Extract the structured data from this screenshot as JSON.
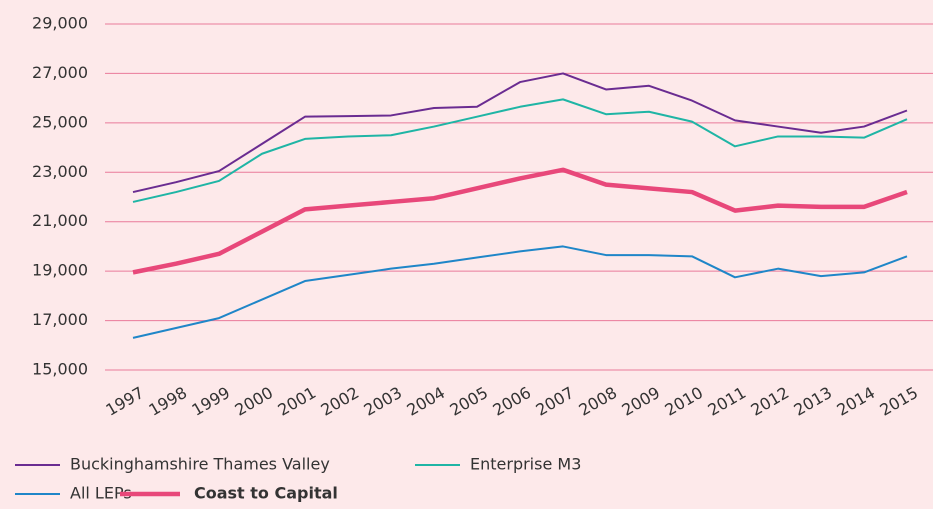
{
  "chart_data": {
    "type": "line",
    "categories": [
      "1997",
      "1998",
      "1999",
      "2000",
      "2001",
      "2002",
      "2003",
      "2004",
      "2005",
      "2006",
      "2007",
      "2008",
      "2009",
      "2010",
      "2011",
      "2012",
      "2013",
      "2014",
      "2015"
    ],
    "series": [
      {
        "name": "Buckinghamshire Thames Valley",
        "color": "#6a2c91",
        "values": [
          22200,
          22600,
          23050,
          24150,
          25250,
          25270,
          25300,
          25600,
          25650,
          26650,
          27000,
          26350,
          26500,
          25900,
          25100,
          24850,
          24600,
          24850,
          25500
        ]
      },
      {
        "name": "Enterprise M3",
        "color": "#1fb5a5",
        "values": [
          21800,
          22200,
          22650,
          23750,
          24350,
          24450,
          24500,
          24850,
          25250,
          25650,
          25950,
          25350,
          25450,
          25050,
          24050,
          24450,
          24450,
          24400,
          25150
        ]
      },
      {
        "name": "All LEPs",
        "color": "#1f86c8",
        "values": [
          16300,
          16700,
          17100,
          17850,
          18600,
          18850,
          19100,
          19300,
          19550,
          19800,
          20000,
          19650,
          19650,
          19600,
          18750,
          19100,
          18800,
          18950,
          19600
        ]
      },
      {
        "name": "Coast to Capital",
        "color": "#e8487a",
        "highlight": true,
        "values": [
          18950,
          19300,
          19700,
          20600,
          21500,
          21650,
          21800,
          21950,
          22350,
          22750,
          23100,
          22500,
          22350,
          22200,
          21450,
          21650,
          21600,
          21600,
          22200
        ]
      }
    ],
    "ylim": [
      15000,
      29000
    ],
    "yticks": [
      {
        "value": 15000,
        "label": "15,000"
      },
      {
        "value": 17000,
        "label": "17,000"
      },
      {
        "value": 19000,
        "label": "19,000"
      },
      {
        "value": 21000,
        "label": "21,000"
      },
      {
        "value": 23000,
        "label": "23,000"
      },
      {
        "value": 25000,
        "label": "25,000"
      },
      {
        "value": 27000,
        "label": "27,000"
      },
      {
        "value": 29000,
        "label": "29,000"
      }
    ],
    "grid": true
  }
}
